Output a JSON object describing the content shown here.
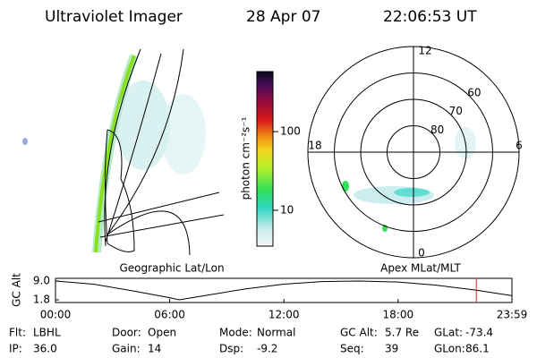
{
  "header": {
    "title": "Ultraviolet Imager",
    "date": "28 Apr 07",
    "time": "22:06:53 UT"
  },
  "colorbar": {
    "label": "photon cm⁻²s⁻¹",
    "log": true,
    "lim": [
      3.5,
      580
    ],
    "ticks": [
      10,
      100
    ]
  },
  "polar": {
    "lat_min": 50,
    "lat_rings": [
      60,
      70,
      80
    ],
    "mlt_labels": [
      "12",
      "6",
      "0",
      "18"
    ]
  },
  "panels": {
    "left_title": "Geographic Lat/Lon",
    "right_title": "Apex MLat/MLT"
  },
  "timeline": {
    "y_label": "GC Alt",
    "ylim": [
      1.8,
      9.0
    ],
    "yticks": [
      {
        "value": 9.0,
        "label": "9.0"
      },
      1.8
    ],
    "xlim": [
      0,
      23.98
    ],
    "xticks": [
      {
        "value": 0,
        "label": "00:00"
      },
      {
        "value": 6,
        "label": "06:00"
      },
      {
        "value": 12,
        "label": "12:00"
      },
      {
        "value": 18,
        "label": "18:00"
      },
      {
        "value": 23.98,
        "label": "23:59"
      }
    ],
    "x": [
      0,
      2,
      4,
      6,
      6.5,
      8,
      10,
      12,
      14,
      16,
      18,
      20,
      22,
      23.98
    ],
    "values": [
      9.0,
      7.8,
      5.3,
      2.6,
      1.8,
      3.6,
      6.0,
      7.8,
      8.8,
      9.0,
      8.6,
      7.4,
      5.6,
      3.4
    ],
    "current_time": 22.11
  },
  "footer": [
    [
      {
        "label": "Flt:",
        "value": "LBHL"
      },
      {
        "label": "Door:",
        "value": "Open"
      },
      {
        "label": "Mode:",
        "value": "Normal"
      },
      {
        "label": "GC Alt:",
        "value": "5.7 Re"
      },
      {
        "label": "GLat:",
        "value": "-73.4"
      }
    ],
    [
      {
        "label": "IP:",
        "value": "36.0"
      },
      {
        "label": "Gain:",
        "value": "14"
      },
      {
        "label": "Dsp:",
        "value": "-9.2"
      },
      {
        "label": "Seq:",
        "value": "39"
      },
      {
        "label": "GLon:",
        "value": "86.1"
      }
    ]
  ]
}
